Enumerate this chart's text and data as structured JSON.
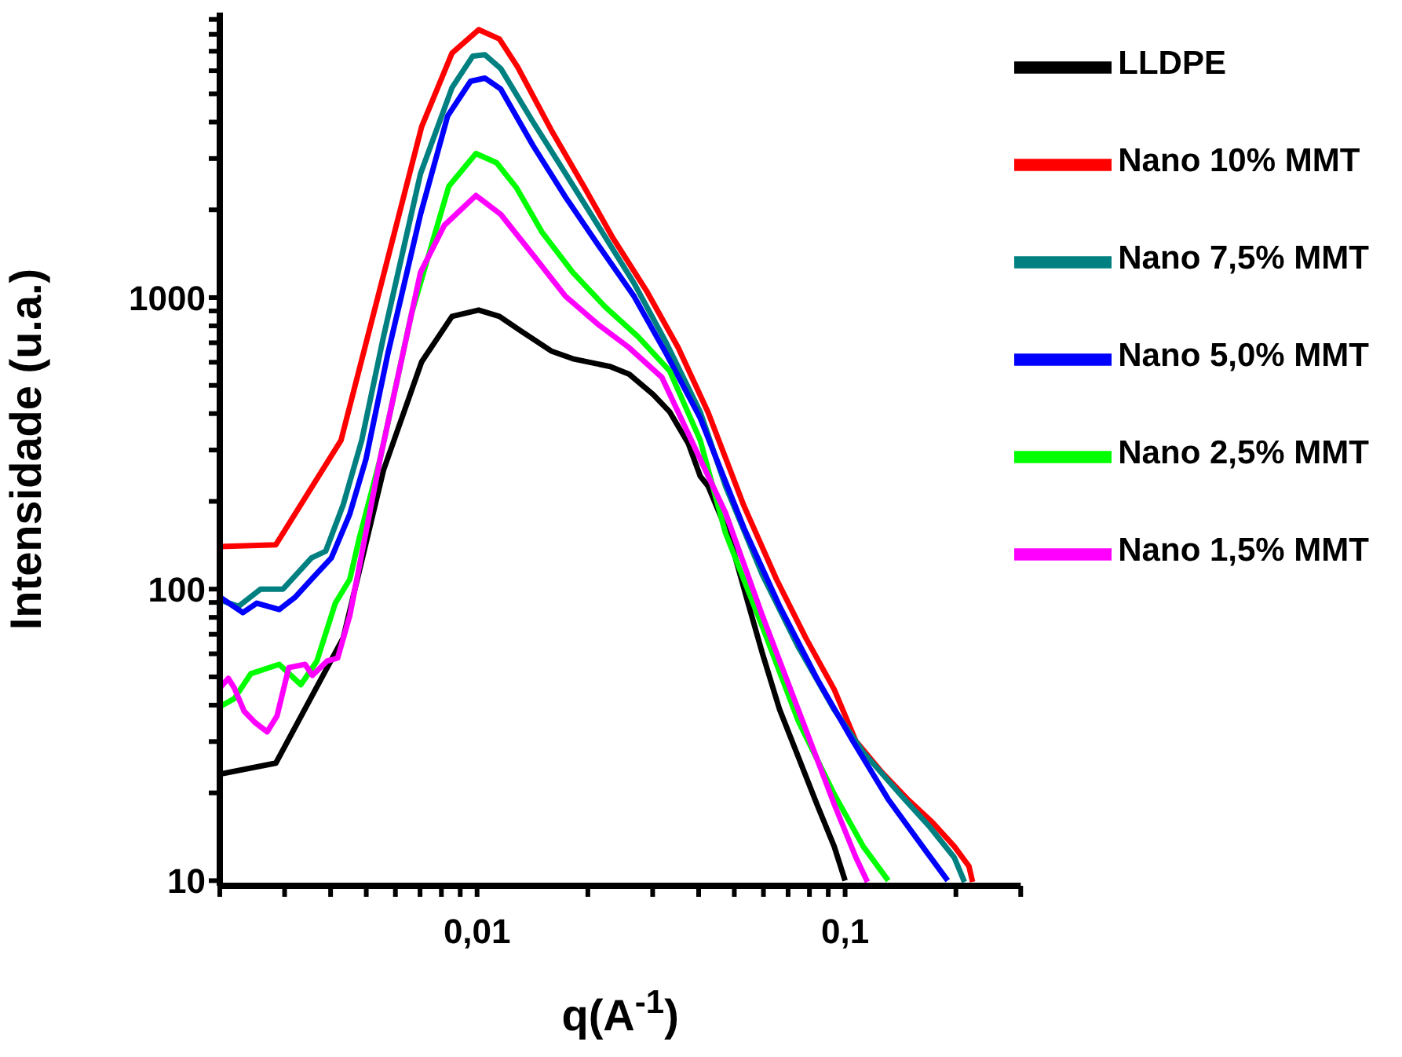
{
  "chart_data": {
    "type": "line",
    "xlabel": "q(A$^{-1}$)",
    "ylabel": "Intensidade (u.a.)",
    "log": "xy",
    "legend": "top right",
    "marker": "none",
    "xlim": [
      0.002,
      0.3
    ],
    "ylim": [
      9.6,
      9500
    ],
    "xticks": [
      {
        "value": 0.002,
        "label": null
      },
      {
        "value": 0.003,
        "label": null
      },
      {
        "value": 0.004,
        "label": null
      },
      {
        "value": 0.005,
        "label": null
      },
      {
        "value": 0.006,
        "label": null
      },
      {
        "value": 0.007,
        "label": null
      },
      {
        "value": 0.008,
        "label": null
      },
      {
        "value": 0.009,
        "label": null
      },
      {
        "value": 0.01,
        "label": "0,01"
      },
      {
        "value": 0.02,
        "label": null
      },
      {
        "value": 0.03,
        "label": null
      },
      {
        "value": 0.04,
        "label": null
      },
      {
        "value": 0.05,
        "label": null
      },
      {
        "value": 0.06,
        "label": null
      },
      {
        "value": 0.07,
        "label": null
      },
      {
        "value": 0.08,
        "label": null
      },
      {
        "value": 0.09,
        "label": null
      },
      {
        "value": 0.1,
        "label": "0,1"
      },
      {
        "value": 0.2,
        "label": null
      },
      {
        "value": 0.3,
        "label": null
      }
    ],
    "yticks": [
      10,
      {
        "value": 20,
        "label": null
      },
      {
        "value": 30,
        "label": null
      },
      {
        "value": 40,
        "label": null
      },
      {
        "value": 50,
        "label": null
      },
      {
        "value": 60,
        "label": null
      },
      {
        "value": 70,
        "label": null
      },
      {
        "value": 80,
        "label": null
      },
      {
        "value": 90,
        "label": null
      },
      100,
      {
        "value": 200,
        "label": null
      },
      {
        "value": 300,
        "label": null
      },
      {
        "value": 400,
        "label": null
      },
      {
        "value": 500,
        "label": null
      },
      {
        "value": 600,
        "label": null
      },
      {
        "value": 700,
        "label": null
      },
      {
        "value": 800,
        "label": null
      },
      {
        "value": 900,
        "label": null
      },
      1000,
      {
        "value": 2000,
        "label": null
      },
      {
        "value": 3000,
        "label": null
      },
      {
        "value": 4000,
        "label": null
      },
      {
        "value": 5000,
        "label": null
      },
      {
        "value": 6000,
        "label": null
      },
      {
        "value": 7000,
        "label": null
      },
      {
        "value": 8000,
        "label": null
      },
      {
        "value": 9000,
        "label": null
      }
    ],
    "series": [
      {
        "name": "LLDPE",
        "color": "#000000",
        "x": [
          0.002,
          0.00284,
          0.00433,
          0.00557,
          0.00707,
          0.00855,
          0.0101,
          0.0115,
          0.0131,
          0.0159,
          0.0182,
          0.023,
          0.0259,
          0.0301,
          0.0334,
          0.0375,
          0.0404,
          0.0424,
          0.0486,
          0.0542,
          0.0596,
          0.0664,
          0.0746,
          0.0838,
          0.0934,
          0.1
        ],
        "values": [
          23.2,
          25.3,
          68.1,
          256,
          602,
          862,
          906,
          862,
          771,
          656,
          617,
          580,
          546,
          465,
          405,
          316,
          244,
          226,
          150,
          91.7,
          60.2,
          38.6,
          26.6,
          18.3,
          13.1,
          10
        ]
      },
      {
        "name": "Nano 10% MMT",
        "color": "#ff0000",
        "x": [
          0.002,
          0.00284,
          0.00427,
          0.00707,
          0.00855,
          0.0101,
          0.0115,
          0.0129,
          0.0159,
          0.0195,
          0.0234,
          0.0288,
          0.0352,
          0.0424,
          0.0531,
          0.0651,
          0.0782,
          0.0934,
          0.107,
          0.126,
          0.148,
          0.173,
          0.198,
          0.217,
          0.222
        ],
        "values": [
          140,
          142,
          324,
          3855,
          6900,
          8300,
          7710,
          6170,
          3760,
          2410,
          1600,
          1060,
          673,
          405,
          193,
          108,
          68,
          45.3,
          30.1,
          23.5,
          19,
          15.8,
          13.1,
          11.2,
          9.9
        ]
      },
      {
        "name": "Nano 7,5% MMT",
        "color": "#008080",
        "x": [
          0.002,
          0.00225,
          0.00258,
          0.00297,
          0.00355,
          0.00388,
          0.00433,
          0.00486,
          0.00557,
          0.00702,
          0.00855,
          0.00973,
          0.0105,
          0.0116,
          0.0142,
          0.0174,
          0.0213,
          0.0267,
          0.0327,
          0.0404,
          0.0473,
          0.0596,
          0.0746,
          0.0934,
          0.112,
          0.141,
          0.169,
          0.198,
          0.211
        ],
        "values": [
          91.7,
          87.3,
          100,
          100,
          128,
          135,
          195,
          324,
          734,
          2660,
          5250,
          6730,
          6810,
          6100,
          4000,
          2660,
          1770,
          1120,
          698,
          405,
          226,
          112,
          63.3,
          38.6,
          27.6,
          19.8,
          15.4,
          12,
          9.9
        ]
      },
      {
        "name": "Nano 5,0% MMT",
        "color": "#0000ff",
        "x": [
          0.002,
          0.00231,
          0.00252,
          0.0029,
          0.00321,
          0.00357,
          0.00402,
          0.00451,
          0.00499,
          0.00572,
          0.00702,
          0.00832,
          0.0096,
          0.0105,
          0.0116,
          0.0142,
          0.0174,
          0.0213,
          0.0267,
          0.0327,
          0.0404,
          0.0531,
          0.0664,
          0.0838,
          0.105,
          0.131,
          0.166,
          0.19
        ],
        "values": [
          94,
          83,
          89.5,
          85.1,
          94,
          109,
          128,
          181,
          279,
          640,
          1930,
          4200,
          5520,
          5660,
          5190,
          3320,
          2210,
          1520,
          1010,
          640,
          386,
          162,
          87.3,
          49.4,
          30.1,
          19,
          12.6,
          10
        ]
      },
      {
        "name": "Nano 2,5% MMT",
        "color": "#00ff00",
        "x": [
          0.002,
          0.00219,
          0.00243,
          0.0029,
          0.00332,
          0.00367,
          0.00412,
          0.00451,
          0.00479,
          0.00545,
          0.00664,
          0.00838,
          0.00993,
          0.0113,
          0.0128,
          0.015,
          0.0182,
          0.0223,
          0.0274,
          0.0334,
          0.0404,
          0.0473,
          0.0596,
          0.0746,
          0.0934,
          0.112,
          0.131
        ],
        "values": [
          39.5,
          42.1,
          51.3,
          55.2,
          47,
          56.6,
          89.5,
          108,
          150,
          279,
          883,
          2410,
          3120,
          2900,
          2380,
          1680,
          1220,
          929,
          734,
          559,
          324,
          156,
          74.3,
          35.3,
          19.8,
          13.1,
          10
        ]
      },
      {
        "name": "Nano 1,5% MMT",
        "color": "#ff00ff",
        "x": [
          0.002,
          0.00211,
          0.00219,
          0.00233,
          0.00249,
          0.00269,
          0.00286,
          0.00308,
          0.00341,
          0.00357,
          0.00391,
          0.00418,
          0.00451,
          0.00545,
          0.00702,
          0.00815,
          0.00993,
          0.0116,
          0.0142,
          0.0174,
          0.0213,
          0.0259,
          0.0318,
          0.0404,
          0.0473,
          0.0596,
          0.0746,
          0.0934,
          0.107,
          0.115
        ],
        "values": [
          45.8,
          49.4,
          45.8,
          38.1,
          34.9,
          32.4,
          36.7,
          53.8,
          55.2,
          50.6,
          56.6,
          58,
          81.1,
          279,
          1220,
          1770,
          2240,
          1930,
          1400,
          1010,
          810,
          673,
          532,
          279,
          183,
          81.1,
          38.6,
          18.3,
          12,
          9.9
        ]
      }
    ]
  }
}
